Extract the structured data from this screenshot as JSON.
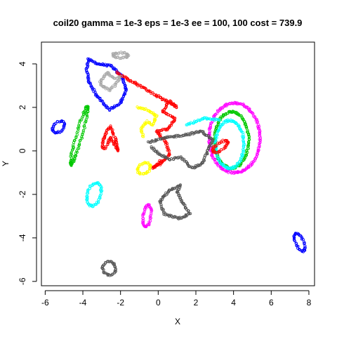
{
  "chart_data": {
    "type": "scatter",
    "title": "coil20 gamma = 1e-3 eps = 1e-3 ee = 100, 100 cost = 739.9",
    "xlabel": "X",
    "ylabel": "Y",
    "xlim": [
      -6.2,
      8.3
    ],
    "ylim": [
      -6.2,
      5.0
    ],
    "xticks": [
      "-6",
      "-4",
      "-2",
      "0",
      "2",
      "4",
      "6",
      "8"
    ],
    "xtick_values": [
      -6,
      -4,
      -2,
      0,
      2,
      4,
      6,
      8
    ],
    "yticks": [
      "-6",
      "-4",
      "-2",
      "0",
      "2",
      "4"
    ],
    "ytick_values": [
      -6,
      -4,
      -2,
      0,
      2,
      4
    ],
    "grid": false,
    "marker": "open-circle",
    "clusters": [
      {
        "color": "#0000ff",
        "shape": "ellipse",
        "cx": -5.3,
        "cy": 1.1,
        "rx": 0.35,
        "ry": 0.22,
        "angle": 30
      },
      {
        "color": "#0000ff",
        "shape": "ellipse",
        "cx": 7.5,
        "cy": -4.2,
        "rx": 0.45,
        "ry": 0.2,
        "angle": -60
      },
      {
        "color": "#0000ff",
        "shape": "path",
        "pts": [
          [
            -3.7,
            4.2
          ],
          [
            -3.2,
            4.0
          ],
          [
            -2.5,
            3.9
          ],
          [
            -1.9,
            3.4
          ],
          [
            -1.7,
            2.8
          ],
          [
            -2.0,
            2.2
          ],
          [
            -2.6,
            1.9
          ],
          [
            -3.3,
            2.6
          ],
          [
            -3.7,
            3.2
          ],
          [
            -3.8,
            3.8
          ],
          [
            -3.7,
            4.2
          ]
        ]
      },
      {
        "color": "#00c800",
        "shape": "ellipse",
        "cx": -4.2,
        "cy": 0.7,
        "rx": 1.4,
        "ry": 0.15,
        "angle": 72
      },
      {
        "color": "#00c800",
        "shape": "ellipse",
        "cx": 3.9,
        "cy": 0.5,
        "rx": 0.9,
        "ry": 1.3,
        "angle": 0
      },
      {
        "color": "#ff00ff",
        "shape": "ellipse",
        "cx": 4.05,
        "cy": 0.6,
        "rx": 1.35,
        "ry": 1.6,
        "angle": 0
      },
      {
        "color": "#ff00ff",
        "shape": "ellipse",
        "cx": -0.6,
        "cy": -3.0,
        "rx": 0.5,
        "ry": 0.2,
        "angle": 80
      },
      {
        "color": "#00ffff",
        "shape": "ellipse",
        "cx": 3.8,
        "cy": 0.3,
        "rx": 0.75,
        "ry": 1.1,
        "angle": 0
      },
      {
        "color": "#00ffff",
        "shape": "ellipse",
        "cx": -3.4,
        "cy": -2.0,
        "rx": 0.55,
        "ry": 0.35,
        "angle": 70
      },
      {
        "color": "#00ffff",
        "shape": "path",
        "pts": [
          [
            1.5,
            1.2
          ],
          [
            2.5,
            1.5
          ],
          [
            3.3,
            1.4
          ]
        ]
      },
      {
        "color": "#ff0000",
        "shape": "path",
        "pts": [
          [
            -3.0,
            0.2
          ],
          [
            -2.8,
            0.8
          ],
          [
            -2.55,
            1.15
          ],
          [
            -2.3,
            0.6
          ],
          [
            -2.1,
            0.0
          ],
          [
            -2.55,
            0.6
          ],
          [
            -2.8,
            0.1
          ],
          [
            -3.0,
            0.2
          ]
        ]
      },
      {
        "color": "#ff0000",
        "shape": "ellipse",
        "cx": 3.3,
        "cy": 0.2,
        "rx": 0.45,
        "ry": 0.18,
        "angle": 30
      },
      {
        "color": "#ff0000",
        "shape": "path",
        "pts": [
          [
            -2.2,
            3.6
          ],
          [
            -1.0,
            3.0
          ],
          [
            0.0,
            2.5
          ],
          [
            1.0,
            2.0
          ],
          [
            0.6,
            2.3
          ],
          [
            0.2,
            1.8
          ],
          [
            0.9,
            1.5
          ],
          [
            0.5,
            1.0
          ],
          [
            -0.1,
            0.9
          ],
          [
            0.4,
            0.4
          ],
          [
            0.6,
            -0.2
          ],
          [
            0.1,
            -0.6
          ],
          [
            -0.3,
            -0.8
          ],
          [
            0.2,
            -0.4
          ]
        ]
      },
      {
        "color": "#ffff00",
        "shape": "path",
        "pts": [
          [
            -1.1,
            2.0
          ],
          [
            -0.6,
            1.9
          ],
          [
            -0.1,
            1.6
          ],
          [
            -0.3,
            1.2
          ],
          [
            -0.6,
            1.35
          ],
          [
            -0.9,
            1.0
          ],
          [
            -0.8,
            0.6
          ]
        ]
      },
      {
        "color": "#ffff00",
        "shape": "ellipse",
        "cx": -0.75,
        "cy": -0.8,
        "rx": 0.35,
        "ry": 0.22,
        "angle": 20
      },
      {
        "color": "#555555",
        "shape": "path",
        "pts": [
          [
            -0.5,
            0.4
          ],
          [
            0.4,
            0.6
          ],
          [
            1.5,
            0.75
          ],
          [
            2.3,
            0.9
          ],
          [
            2.9,
            0.5
          ],
          [
            2.6,
            -0.1
          ],
          [
            2.3,
            -0.6
          ],
          [
            1.8,
            -0.8
          ],
          [
            1.2,
            -0.3
          ],
          [
            0.6,
            -0.4
          ],
          [
            0.0,
            -0.1
          ],
          [
            -0.4,
            0.2
          ]
        ]
      },
      {
        "color": "#555555",
        "shape": "path",
        "pts": [
          [
            1.2,
            -1.6
          ],
          [
            0.6,
            -1.8
          ],
          [
            0.1,
            -2.3
          ],
          [
            0.3,
            -2.9
          ],
          [
            1.1,
            -3.1
          ],
          [
            1.7,
            -2.9
          ],
          [
            1.3,
            -2.4
          ],
          [
            1.0,
            -1.9
          ],
          [
            1.2,
            -1.6
          ]
        ]
      },
      {
        "color": "#555555",
        "shape": "ellipse",
        "cx": -2.6,
        "cy": -5.4,
        "rx": 0.35,
        "ry": 0.3,
        "angle": 0
      },
      {
        "color": "#aaaaaa",
        "shape": "ellipse",
        "cx": -2.0,
        "cy": 4.4,
        "rx": 0.4,
        "ry": 0.12,
        "angle": 0
      },
      {
        "color": "#aaaaaa",
        "shape": "path",
        "pts": [
          [
            -3.1,
            3.2
          ],
          [
            -2.7,
            3.6
          ],
          [
            -2.3,
            3.3
          ],
          [
            -2.0,
            3.4
          ],
          [
            -2.3,
            3.0
          ],
          [
            -2.6,
            2.8
          ],
          [
            -3.0,
            3.0
          ],
          [
            -3.1,
            3.2
          ]
        ]
      }
    ]
  }
}
